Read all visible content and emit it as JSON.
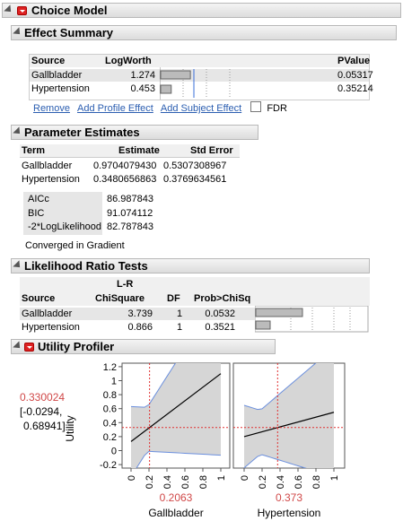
{
  "choice_model": {
    "title": "Choice Model"
  },
  "effect_summary": {
    "title": "Effect Summary",
    "columns": [
      "Source",
      "LogWorth",
      "PValue"
    ],
    "rows": [
      {
        "source": "Gallbladder",
        "logworth": "1.274",
        "pvalue": "0.05317",
        "logworth_value": 1.274
      },
      {
        "source": "Hypertension",
        "logworth": "0.453",
        "pvalue": "0.35214",
        "logworth_value": 0.453
      }
    ],
    "links": {
      "remove": "Remove",
      "add_profile": "Add Profile Effect",
      "add_subject": "Add Subject Effect"
    },
    "fdr_label": "FDR"
  },
  "parameter_estimates": {
    "title": "Parameter Estimates",
    "columns": [
      "Term",
      "Estimate",
      "Std Error"
    ],
    "rows": [
      {
        "term": "Gallbladder",
        "estimate": "0.9704079430",
        "stderr": "0.5307308967"
      },
      {
        "term": "Hypertension",
        "estimate": "0.3480656863",
        "stderr": "0.3769634561"
      }
    ],
    "fit": [
      {
        "label": "AICc",
        "value": "86.987843"
      },
      {
        "label": "BIC",
        "value": "91.074112"
      },
      {
        "label": "-2*LogLikelihood",
        "value": "82.787843"
      }
    ],
    "converged": "Converged in Gradient"
  },
  "likelihood_ratio": {
    "title": "Likelihood Ratio Tests",
    "col_lr_top": "L-R",
    "columns": [
      "Source",
      "ChiSquare",
      "DF",
      "Prob>ChiSq"
    ],
    "rows": [
      {
        "source": "Gallbladder",
        "chisq": "3.739",
        "df": "1",
        "prob": "0.0532",
        "prob_value": 0.0532
      },
      {
        "source": "Hypertension",
        "chisq": "0.866",
        "df": "1",
        "prob": "0.3521",
        "prob_value": 0.3521
      }
    ]
  },
  "utility_profiler": {
    "title": "Utility Profiler",
    "y_label": "Utility",
    "y_value": "0.330024",
    "y_ci_line1": "[-0.0294,",
    "y_ci_line2": "0.68941]",
    "y_ticks": [
      "1.2",
      "1",
      "0.8",
      "0.6",
      "0.4",
      "0.2",
      "0",
      "-0.2"
    ],
    "x_ticks": [
      "0",
      "0.2",
      "0.4",
      "0.6",
      "0.8",
      "1"
    ],
    "panels": [
      {
        "name": "Gallbladder",
        "current": "0.2063"
      },
      {
        "name": "Hypertension",
        "current": "0.373"
      }
    ]
  }
}
